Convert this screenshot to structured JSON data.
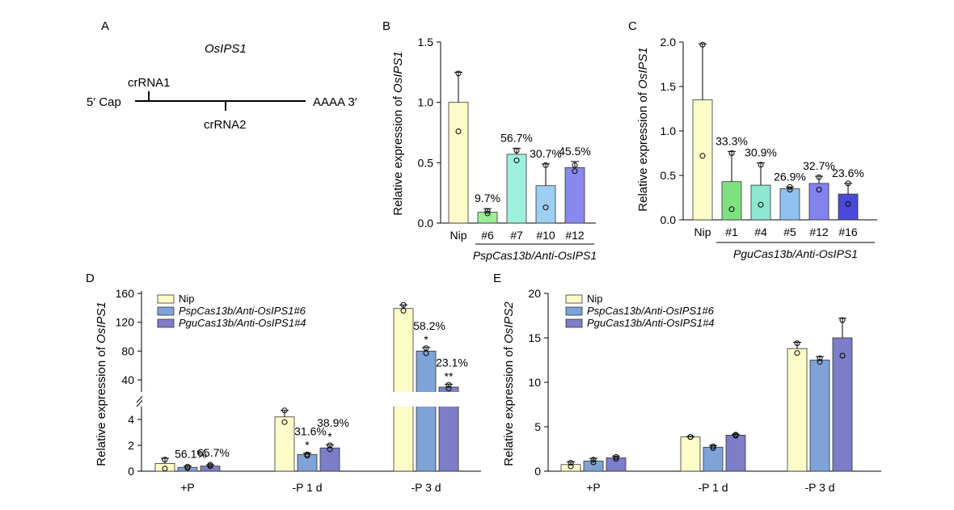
{
  "panelA": {
    "letter": "A",
    "gene": "OsIPS1",
    "cr1": "crRNA1",
    "cr2": "crRNA2",
    "left_end": "5′ Cap",
    "right_end": "AAAA 3′"
  },
  "colors": {
    "Nip": "#fcfcc8",
    "g6": "#9cec98",
    "g7": "#9df0dd",
    "g10": "#9ccff2",
    "g12": "#8888ee",
    "g1": "#80e080",
    "g4": "#8de8cf",
    "g5": "#8fc1f2",
    "g12c": "#8383ee",
    "g16": "#4a4ad8",
    "Psp": "#7fa3d6",
    "Pgu": "#7d7dc8"
  },
  "chart_data": [
    {
      "type": "bar",
      "panel": "B",
      "ylabel_prefix": "Relative expression of ",
      "ylabel_gene": "OsIPS1",
      "categories": [
        "Nip",
        "#6",
        "#7",
        "#10",
        "#12"
      ],
      "values": [
        1.0,
        0.09,
        0.57,
        0.31,
        0.46
      ],
      "errors": [
        0.25,
        0.03,
        0.05,
        0.18,
        0.05
      ],
      "points": [
        [
          1.24,
          0.76
        ],
        [
          0.08,
          0.1
        ],
        [
          0.52,
          0.6
        ],
        [
          0.48,
          0.13
        ],
        [
          0.48,
          0.43
        ]
      ],
      "labels": [
        "",
        "9.7%",
        "56.7%",
        "30.7%",
        "45.5%"
      ],
      "colors": [
        "#fcfcc8",
        "#9cec98",
        "#9df0dd",
        "#9ccff2",
        "#8888ee"
      ],
      "yticks": [
        "0.0",
        "0.5",
        "1.0",
        "1.5"
      ],
      "ylim": [
        0,
        1.5
      ],
      "group_label": "PspCas13b/Anti-OsIPS1"
    },
    {
      "type": "bar",
      "panel": "C",
      "ylabel_prefix": "Relative expression of ",
      "ylabel_gene": "OsIPS1",
      "categories": [
        "Nip",
        "#1",
        "#4",
        "#5",
        "#12",
        "#16"
      ],
      "values": [
        1.35,
        0.43,
        0.39,
        0.35,
        0.41,
        0.29
      ],
      "errors": [
        0.63,
        0.34,
        0.25,
        0.02,
        0.08,
        0.12
      ],
      "points": [
        [
          1.97,
          0.72
        ],
        [
          0.75,
          0.12
        ],
        [
          0.62,
          0.17
        ],
        [
          0.34,
          0.37
        ],
        [
          0.48,
          0.34
        ],
        [
          0.41,
          0.18
        ]
      ],
      "labels": [
        "",
        "33.3%",
        "30.9%",
        "26.9%",
        "32.7%",
        "23.6%"
      ],
      "colors": [
        "#fcfcc8",
        "#80e080",
        "#8de8cf",
        "#8fc1f2",
        "#8383ee",
        "#4a4ad8"
      ],
      "yticks": [
        "0.0",
        "0.5",
        "1.0",
        "1.5",
        "2.0"
      ],
      "ylim": [
        0,
        2.0
      ],
      "group_label": "PguCas13b/Anti-OsIPS1"
    },
    {
      "type": "bar",
      "panel": "D",
      "ylabel_prefix": "Relative expression of ",
      "ylabel_gene": "OsIPS1",
      "categories": [
        "+P",
        "-P 1 d",
        "-P 3 d"
      ],
      "legend": [
        "Nip",
        "PspCas13b/Anti-OsIPS1#6",
        "PguCas13b/Anti-OsIPS1#4"
      ],
      "series": [
        {
          "values": [
            0.6,
            4.2,
            139
          ],
          "errors": [
            0.4,
            0.5,
            5
          ],
          "points": [
            [
              0.9,
              0.2
            ],
            [
              4.7,
              3.8
            ],
            [
              144,
              136
            ]
          ]
        },
        {
          "values": [
            0.3,
            1.3,
            80
          ],
          "errors": [
            0.1,
            0.1,
            5
          ],
          "points": [
            [
              0.25,
              0.35
            ],
            [
              1.2,
              1.3
            ],
            [
              84,
              77
            ]
          ]
        },
        {
          "values": [
            0.4,
            1.8,
            30
          ],
          "errors": [
            0.1,
            0.25,
            4
          ],
          "points": [
            [
              0.5,
              0.4
            ],
            [
              2.0,
              1.7
            ],
            [
              33,
              28
            ]
          ]
        }
      ],
      "labels": [
        [
          "",
          "56.1%",
          "65.7%"
        ],
        [
          "",
          "31.6%",
          "38.9%"
        ],
        [
          "",
          "58.2%",
          "23.1%"
        ]
      ],
      "stars": [
        [
          "",
          "",
          ""
        ],
        [
          "",
          "*",
          "*"
        ],
        [
          "",
          "*",
          "**"
        ]
      ],
      "yticks_lower": [
        "0",
        "2",
        "4"
      ],
      "yticks_upper": [
        "40",
        "80",
        "120",
        "160"
      ],
      "y_break": true,
      "ylim_lower": [
        0,
        5
      ],
      "ylim_upper": [
        20,
        160
      ]
    },
    {
      "type": "bar",
      "panel": "E",
      "ylabel_prefix": "Relative expression of ",
      "ylabel_gene": "OsIPS2",
      "categories": [
        "+P",
        "-P 1 d",
        "-P 3 d"
      ],
      "legend": [
        "Nip",
        "PspCas13b/Anti-OsIPS1#6",
        "PguCas13b/Anti-OsIPS1#4"
      ],
      "series": [
        {
          "values": [
            0.75,
            3.85,
            13.8
          ],
          "errors": [
            0.3,
            0.05,
            0.7
          ],
          "points": [
            [
              0.95,
              0.55
            ],
            [
              3.85,
              3.85
            ],
            [
              14.4,
              13.3
            ]
          ]
        },
        {
          "values": [
            1.15,
            2.7,
            12.5
          ],
          "errors": [
            0.3,
            0.2,
            0.4
          ],
          "points": [
            [
              1.3,
              1.0
            ],
            [
              2.8,
              2.6
            ],
            [
              12.7,
              12.3
            ]
          ]
        },
        {
          "values": [
            1.5,
            4.05,
            15.0
          ],
          "errors": [
            0.2,
            0.1,
            2.2
          ],
          "points": [
            [
              1.6,
              1.4
            ],
            [
              4.1,
              4.0
            ],
            [
              17.0,
              13.0
            ]
          ]
        }
      ],
      "yticks": [
        "0",
        "5",
        "10",
        "15",
        "20"
      ],
      "ylim": [
        0,
        20
      ]
    }
  ]
}
